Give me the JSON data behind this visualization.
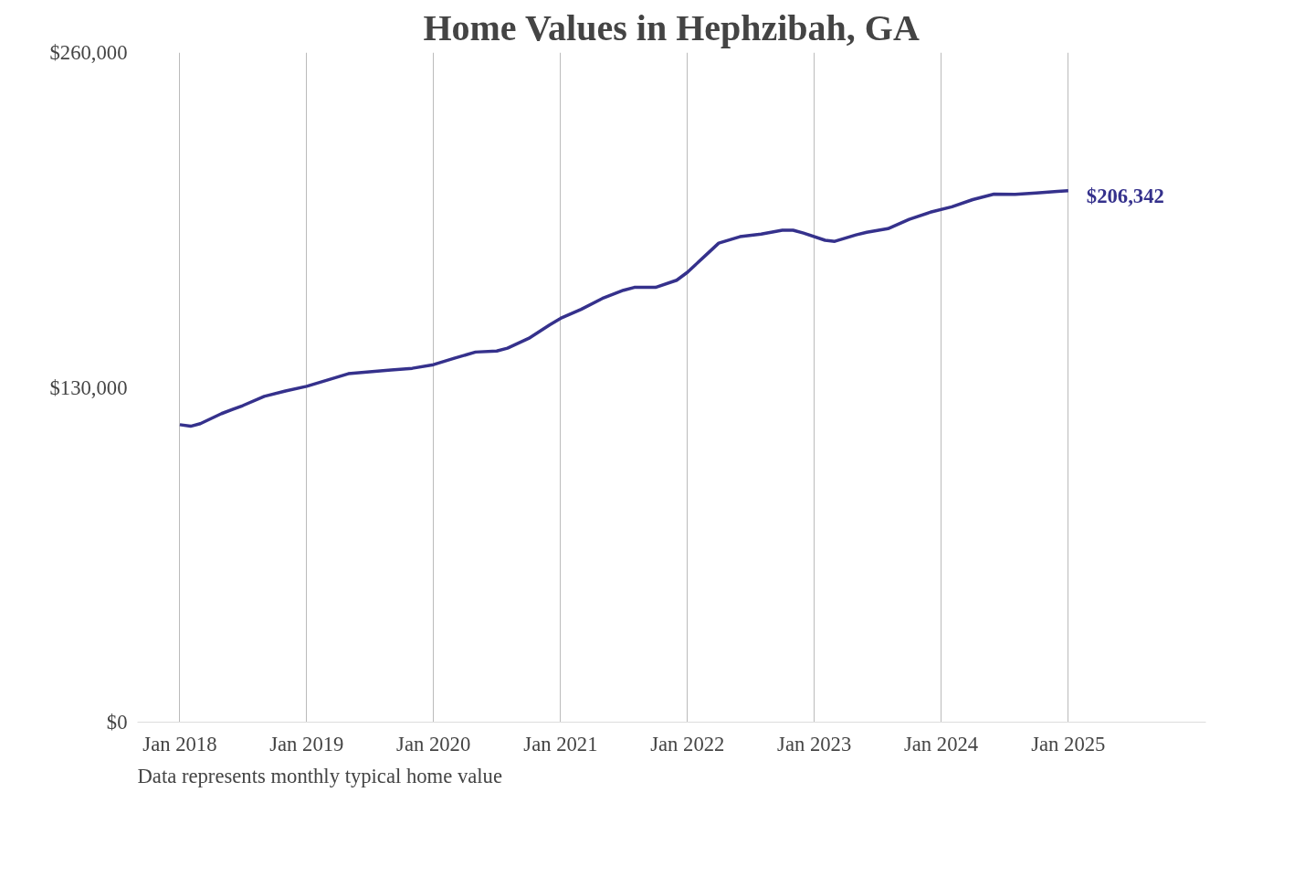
{
  "chart_data": {
    "type": "line",
    "title": "Home Values in Hephzibah, GA",
    "x": [
      "2018-01",
      "2018-02",
      "2018-03",
      "2018-05",
      "2018-07",
      "2018-09",
      "2018-11",
      "2019-01",
      "2019-03",
      "2019-05",
      "2019-07",
      "2019-09",
      "2019-11",
      "2020-01",
      "2020-03",
      "2020-05",
      "2020-07",
      "2020-08",
      "2020-10",
      "2020-12",
      "2021-01",
      "2021-03",
      "2021-05",
      "2021-07",
      "2021-08",
      "2021-10",
      "2021-12",
      "2022-01",
      "2022-03",
      "2022-04",
      "2022-06",
      "2022-08",
      "2022-10",
      "2022-11",
      "2022-12",
      "2023-02",
      "2023-03",
      "2023-05",
      "2023-06",
      "2023-08",
      "2023-10",
      "2023-12",
      "2024-02",
      "2024-04",
      "2024-06",
      "2024-08",
      "2024-10",
      "2024-12",
      "2025-01"
    ],
    "series": [
      {
        "color": "#35318c",
        "values": [
          115500,
          114900,
          115900,
          119800,
          122900,
          126500,
          128600,
          130400,
          132800,
          135300,
          136000,
          136700,
          137400,
          138800,
          141300,
          143700,
          144100,
          145200,
          149000,
          154300,
          156800,
          160300,
          164500,
          167700,
          168800,
          168800,
          171600,
          174700,
          182100,
          186000,
          188500,
          189500,
          191000,
          191000,
          189900,
          187100,
          186700,
          189200,
          190200,
          191600,
          195200,
          198000,
          200100,
          202900,
          205000,
          204900,
          205500,
          206100,
          206342
        ]
      }
    ],
    "xlim": [
      "2017-09",
      "2026-02"
    ],
    "xticks": [
      {
        "value": "2018-01",
        "label": "Jan 2018"
      },
      {
        "value": "2019-01",
        "label": "Jan 2019"
      },
      {
        "value": "2020-01",
        "label": "Jan 2020"
      },
      {
        "value": "2021-01",
        "label": "Jan 2021"
      },
      {
        "value": "2022-01",
        "label": "Jan 2022"
      },
      {
        "value": "2023-01",
        "label": "Jan 2023"
      },
      {
        "value": "2024-01",
        "label": "Jan 2024"
      },
      {
        "value": "2025-01",
        "label": "Jan 2025"
      }
    ],
    "ylim": [
      0,
      260000
    ],
    "yticks": [
      {
        "value": 0,
        "label": "$0"
      },
      {
        "value": 130000,
        "label": "$130,000"
      },
      {
        "value": 260000,
        "label": "$260,000"
      }
    ],
    "grid": "x",
    "annotations": [
      {
        "text": "$206,342",
        "x": "2025-01",
        "y": 206342
      },
      "Data represents monthly typical home value"
    ]
  }
}
